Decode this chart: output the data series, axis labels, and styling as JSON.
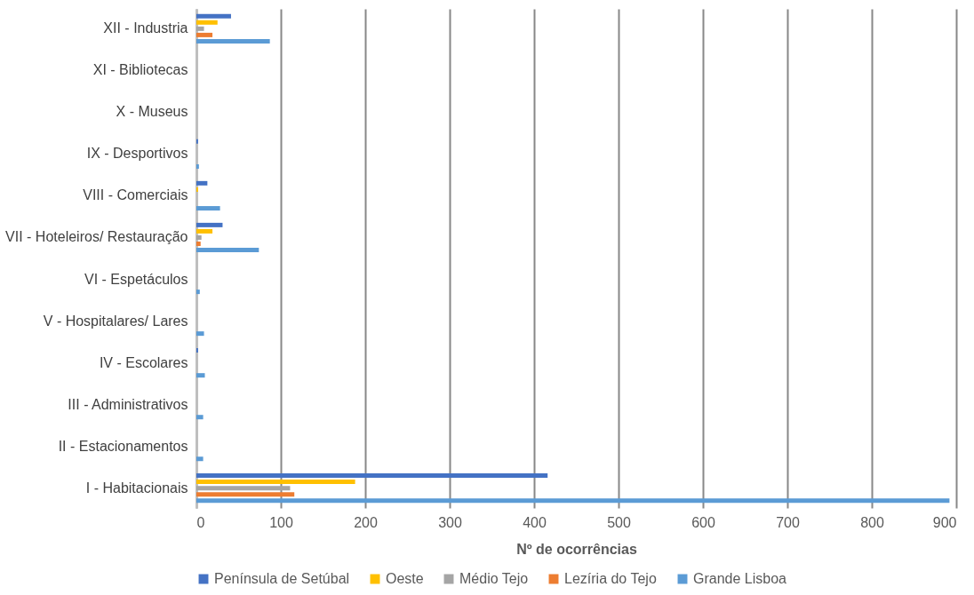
{
  "chart_data": {
    "type": "bar",
    "orientation": "horizontal",
    "xlabel": "Nº de ocorrências",
    "categories": [
      "XII - Industria",
      "XI - Bibliotecas",
      "X - Museus",
      "IX - Desportivos",
      "VIII - Comerciais",
      "VII - Hoteleiros/ Restauração",
      "VI - Espetáculos",
      "V - Hospitalares/ Lares",
      "IV - Escolares",
      "III - Administrativos",
      "II - Estacionamentos",
      "I - Habitacionais"
    ],
    "series": [
      {
        "name": "Península de Setúbal",
        "color": "#4472c4",
        "values": [
          41,
          0,
          0,
          2,
          13,
          31,
          0,
          0,
          2,
          0,
          0,
          416
        ]
      },
      {
        "name": "Oeste",
        "color": "#ffc000",
        "values": [
          25,
          0,
          0,
          0,
          2,
          19,
          0,
          0,
          0,
          0,
          0,
          188
        ]
      },
      {
        "name": "Médio Tejo",
        "color": "#a5a5a5",
        "values": [
          9,
          0,
          0,
          0,
          0,
          6,
          0,
          0,
          0,
          null,
          0,
          111
        ]
      },
      {
        "name": "Lezíria do Tejo",
        "color": "#ed7d31",
        "values": [
          19,
          0,
          0,
          0,
          0,
          5,
          0,
          0,
          0,
          0,
          0,
          116
        ]
      },
      {
        "name": "Grande Lisboa",
        "color": "#5b9bd5",
        "values": [
          87,
          0,
          0,
          3,
          28,
          74,
          4,
          9,
          10,
          8,
          8,
          892
        ]
      }
    ],
    "xlim": [
      0,
      900
    ],
    "xticks": [
      0,
      100,
      200,
      300,
      400,
      500,
      600,
      700,
      800,
      900
    ],
    "grid": "x",
    "legend": "bottom"
  }
}
